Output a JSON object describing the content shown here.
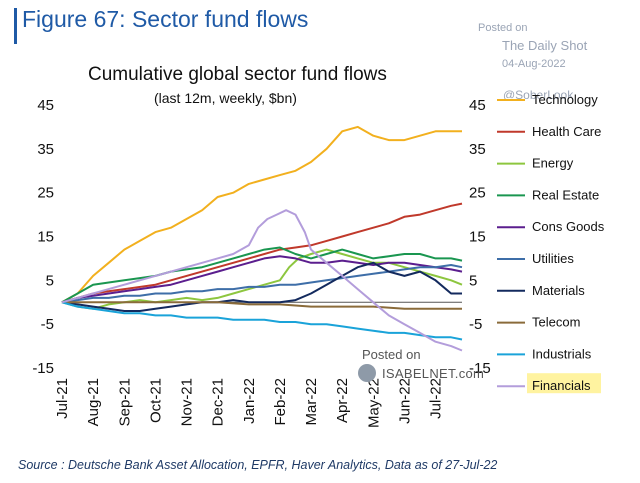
{
  "header": {
    "title": "Figure 67: Sector fund flows",
    "posted_on": "Posted on",
    "publisher": "The Daily Shot",
    "date": "04-Aug-2022",
    "handle": "@SoberLook"
  },
  "footer": {
    "source": "Source : Deutsche Bank Asset Allocation, EPFR, Haver Analytics, Data as of 27-Jul-22"
  },
  "watermark": {
    "posted_on": "Posted on",
    "site": "ISABELNET.com"
  },
  "chart_data": {
    "type": "line",
    "title": "Cumulative global sector fund flows",
    "subtitle": "(last 12m, weekly, $bn)",
    "ylim": [
      -15,
      45
    ],
    "yticks": [
      45,
      35,
      25,
      15,
      5,
      -5,
      -15
    ],
    "x_ticks": [
      "Jul-21",
      "Aug-21",
      "Sep-21",
      "Oct-21",
      "Nov-21",
      "Dec-21",
      "Jan-22",
      "Feb-22",
      "Mar-22",
      "Apr-22",
      "May-22",
      "Jun-22",
      "Jul-22"
    ],
    "x_range": [
      0,
      12.85
    ],
    "grid": false,
    "legend": "right",
    "highlight_color": "#fff3a0",
    "series": [
      {
        "name": "Technology",
        "color": "#f2b01e",
        "x": [
          0,
          0.5,
          1,
          1.5,
          2,
          2.5,
          3,
          3.5,
          4,
          4.5,
          5,
          5.5,
          6,
          6.5,
          7,
          7.5,
          8,
          8.5,
          9,
          9.5,
          10,
          10.5,
          11,
          11.5,
          12,
          12.5,
          12.85
        ],
        "y": [
          0,
          2,
          6,
          9,
          12,
          14,
          16,
          17,
          19,
          21,
          24,
          25,
          27,
          28,
          29,
          30,
          32,
          35,
          39,
          40,
          38,
          37,
          37,
          38,
          39,
          39,
          39
        ]
      },
      {
        "name": "Health Care",
        "color": "#c0392b",
        "x": [
          0,
          0.5,
          1,
          1.5,
          2,
          3,
          4,
          5,
          6,
          7,
          7.5,
          8,
          8.5,
          9,
          9.5,
          10,
          10.5,
          11,
          11.5,
          12,
          12.5,
          12.85
        ],
        "y": [
          0,
          1,
          2,
          2.5,
          3,
          4,
          6,
          8,
          10,
          12,
          12.5,
          13,
          14,
          15,
          16,
          17,
          18,
          19.5,
          20,
          21,
          22,
          22.5
        ]
      },
      {
        "name": "Energy",
        "color": "#8dc63f",
        "x": [
          0,
          0.5,
          1,
          1.5,
          2,
          2.5,
          3,
          3.5,
          4,
          4.5,
          5,
          5.5,
          6,
          6.5,
          7,
          7.3,
          7.6,
          8,
          8.5,
          9,
          9.5,
          10,
          10.5,
          11,
          11.5,
          12,
          12.5,
          12.85
        ],
        "y": [
          0,
          -1,
          -1.5,
          -0.5,
          0,
          0.5,
          0,
          0.5,
          1,
          0.5,
          1,
          2,
          3,
          4,
          5,
          8,
          10,
          11,
          12,
          11,
          10,
          9,
          9,
          8,
          7,
          6,
          5,
          4
        ]
      },
      {
        "name": "Real Estate",
        "color": "#1a9650",
        "x": [
          0,
          0.5,
          1,
          1.5,
          2,
          2.5,
          3,
          3.5,
          4,
          4.5,
          5,
          5.5,
          6,
          6.5,
          7,
          7.5,
          8,
          8.5,
          9,
          9.5,
          10,
          10.5,
          11,
          11.5,
          12,
          12.5,
          12.85
        ],
        "y": [
          0,
          2,
          4,
          4.5,
          5,
          5.5,
          6,
          7,
          7.5,
          8,
          9,
          10,
          11,
          12,
          12.5,
          11,
          10,
          11,
          12,
          11,
          10,
          10.5,
          11,
          11,
          10,
          10,
          9.5
        ]
      },
      {
        "name": "Cons Goods",
        "color": "#5b1e8e",
        "x": [
          0,
          0.5,
          1,
          1.5,
          2,
          2.5,
          3,
          3.5,
          4,
          4.5,
          5,
          5.5,
          6,
          6.5,
          7,
          7.5,
          8,
          8.5,
          9,
          9.5,
          10,
          10.5,
          11,
          11.5,
          12,
          12.5,
          12.85
        ],
        "y": [
          0,
          1,
          1.5,
          2,
          2.5,
          3,
          3.5,
          4,
          5,
          6,
          7,
          8,
          9,
          10,
          10.5,
          10,
          9,
          9,
          9.5,
          9,
          8.5,
          9,
          9,
          8.5,
          8,
          7.5,
          7
        ]
      },
      {
        "name": "Utilities",
        "color": "#3e6ea8",
        "x": [
          0,
          0.5,
          1,
          1.5,
          2,
          2.5,
          3,
          3.5,
          4,
          4.5,
          5,
          5.5,
          6,
          6.5,
          7,
          7.5,
          8,
          8.5,
          9,
          9.5,
          10,
          10.5,
          11,
          11.5,
          12,
          12.5,
          12.85
        ],
        "y": [
          0,
          0.5,
          1,
          1,
          1.5,
          1.5,
          2,
          2,
          2.5,
          2.5,
          3,
          3,
          3.5,
          3.5,
          4,
          4,
          4.5,
          5,
          5.5,
          6,
          6.5,
          7,
          7.5,
          8,
          8,
          8.5,
          8
        ]
      },
      {
        "name": "Materials",
        "color": "#132a5e",
        "x": [
          0,
          0.5,
          1,
          1.5,
          2,
          2.5,
          3,
          3.5,
          4,
          4.5,
          5,
          5.5,
          6,
          6.5,
          7,
          7.5,
          8,
          8.5,
          9,
          9.5,
          10,
          10.5,
          11,
          11.5,
          12,
          12.5,
          12.85
        ],
        "y": [
          0,
          -0.5,
          -1,
          -1.5,
          -2,
          -2,
          -1.5,
          -1,
          -0.5,
          0,
          0,
          0.5,
          0,
          0,
          0,
          0.5,
          2,
          4,
          6,
          8,
          9,
          7,
          6,
          7,
          5,
          2,
          2
        ]
      },
      {
        "name": "Telecom",
        "color": "#8a6b3a",
        "x": [
          0,
          1,
          2,
          3,
          4,
          5,
          6,
          7,
          8,
          9,
          10,
          11,
          12,
          12.85
        ],
        "y": [
          0,
          0,
          0,
          0,
          0,
          0,
          -0.5,
          -0.5,
          -1,
          -1,
          -1,
          -1.5,
          -1.5,
          -1.5
        ]
      },
      {
        "name": "Industrials",
        "color": "#1aa3d9",
        "x": [
          0,
          0.5,
          1,
          1.5,
          2,
          2.5,
          3,
          3.5,
          4,
          4.5,
          5,
          5.5,
          6,
          6.5,
          7,
          7.5,
          8,
          8.5,
          9,
          9.5,
          10,
          10.5,
          11,
          11.5,
          12,
          12.5,
          12.85
        ],
        "y": [
          0,
          -1,
          -1.5,
          -2,
          -2.5,
          -2.5,
          -3,
          -3,
          -3.5,
          -3.5,
          -3.5,
          -4,
          -4,
          -4,
          -4.5,
          -4.5,
          -5,
          -5,
          -5.5,
          -6,
          -6.5,
          -7,
          -7,
          -7.5,
          -8,
          -8,
          -8.5
        ]
      },
      {
        "name": "Financials",
        "color": "#b39ddb",
        "x": [
          0,
          0.5,
          1,
          1.5,
          2,
          2.5,
          3,
          3.5,
          4,
          4.5,
          5,
          5.5,
          6,
          6.3,
          6.6,
          6.9,
          7.2,
          7.5,
          7.8,
          8,
          8.5,
          9,
          9.5,
          10,
          10.5,
          11,
          11.5,
          12,
          12.5,
          12.85
        ],
        "y": [
          0,
          1,
          2,
          3,
          4,
          5,
          6,
          7,
          8,
          9,
          10,
          11,
          13,
          17,
          19,
          20,
          21,
          20,
          16,
          12,
          9,
          6,
          3,
          0,
          -3,
          -5,
          -7,
          -9,
          -10,
          -11
        ]
      }
    ]
  }
}
